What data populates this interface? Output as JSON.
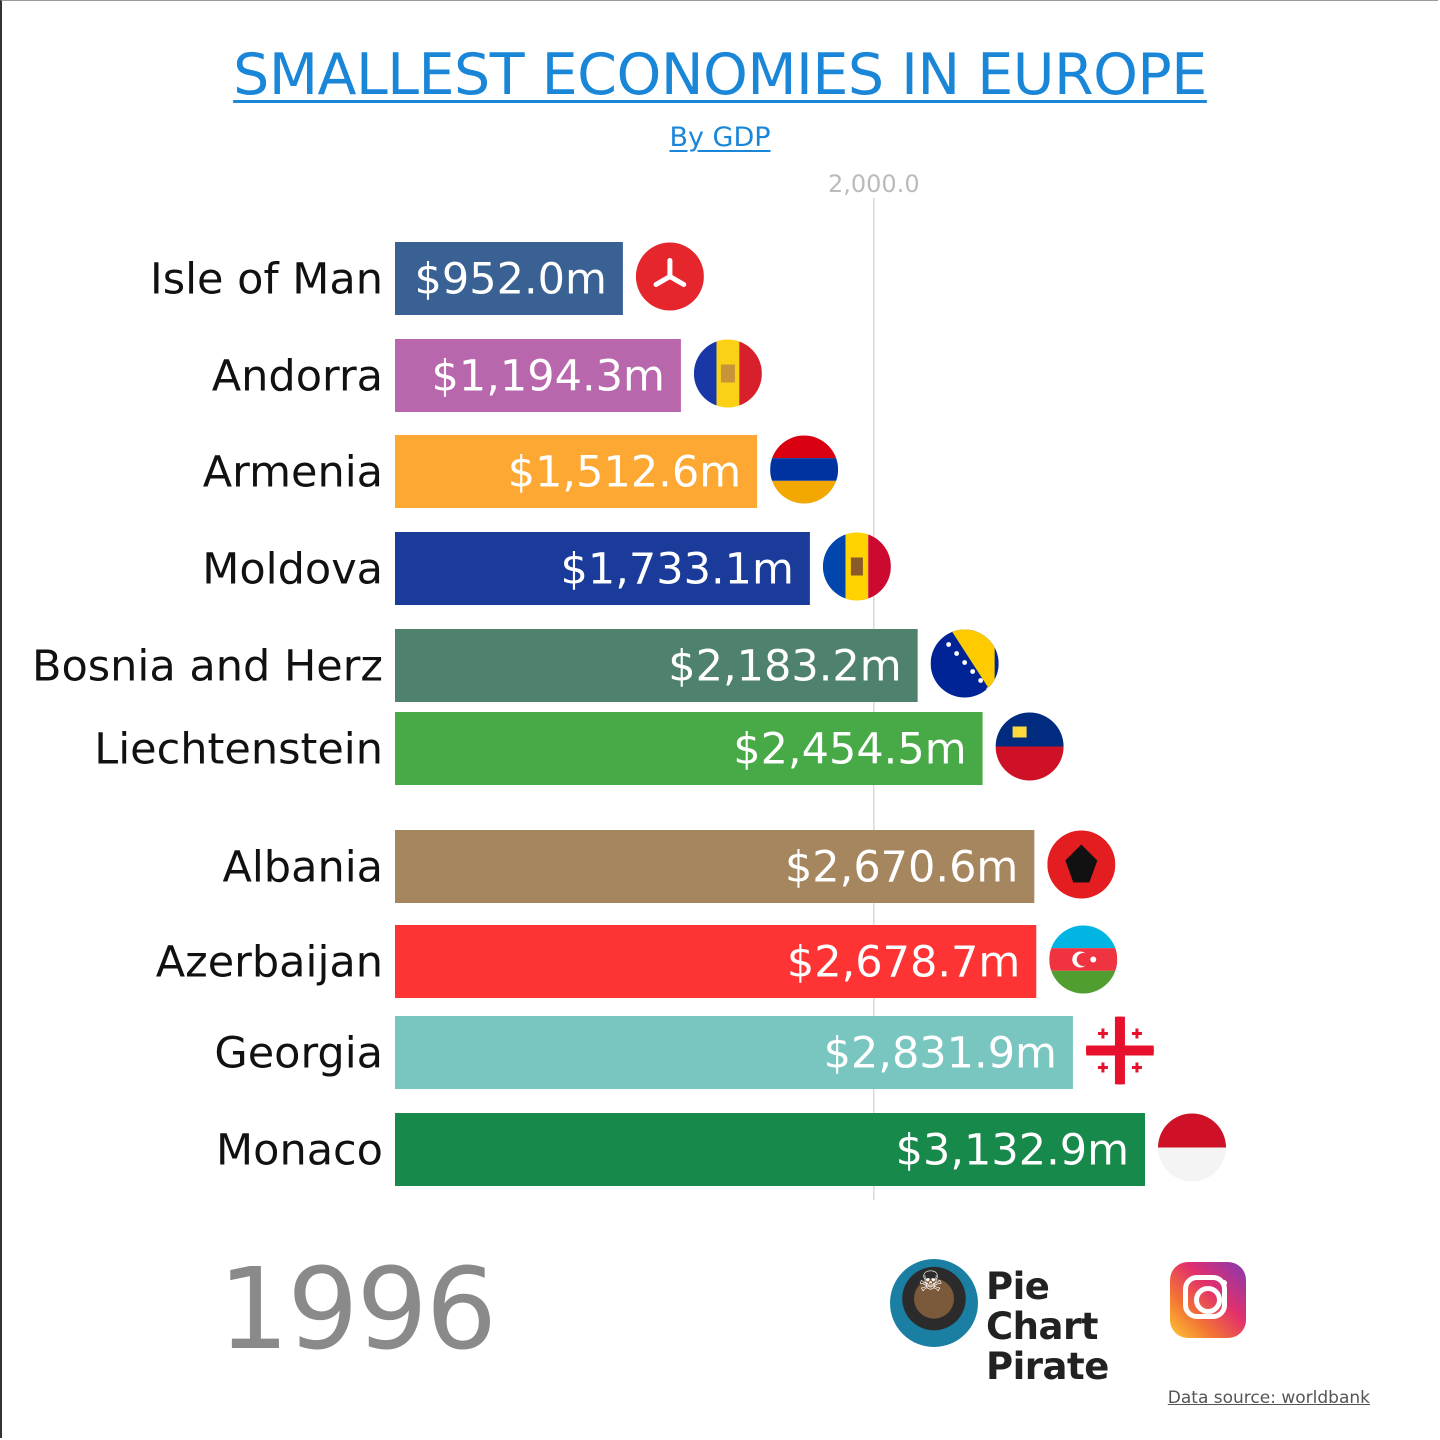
{
  "header": {
    "title": "SMALLEST ECONOMIES IN EUROPE",
    "subtitle": "By GDP"
  },
  "chart_data": {
    "type": "bar",
    "orientation": "horizontal",
    "title": "SMALLEST ECONOMIES IN EUROPE",
    "subtitle": "By GDP",
    "unit": "$m",
    "x_ticks": [
      "2,000.0"
    ],
    "xlim": [
      0,
      4000
    ],
    "grid": true,
    "categories": [
      "Isle of Man",
      "Andorra",
      "Armenia",
      "Moldova",
      "Bosnia and Herz",
      "Liechtenstein",
      "Albania",
      "Azerbaijan",
      "Georgia",
      "Monaco"
    ],
    "values": [
      952.0,
      1194.3,
      1512.6,
      1733.1,
      2183.2,
      2454.5,
      2670.6,
      2678.7,
      2831.9,
      3132.9
    ],
    "value_labels": [
      "$952.0m",
      "$1,194.3m",
      "$1,512.6m",
      "$1,733.1m",
      "$2,183.2m",
      "$2,454.5m",
      "$2,670.6m",
      "$2,678.7m",
      "$2,831.9m",
      "$3,132.9m"
    ],
    "colors": [
      "#3a6193",
      "#b967ad",
      "#fda833",
      "#1b3b9b",
      "#4e826c",
      "#48aa47",
      "#a6865e",
      "#fe3434",
      "#79c6c1",
      "#17894b"
    ],
    "flags": [
      "isle-of-man-flag",
      "andorra-flag",
      "armenia-flag",
      "moldova-flag",
      "bosnia-flag",
      "liechtenstein-flag",
      "albania-flag",
      "azerbaijan-flag",
      "georgia-flag",
      "monaco-flag"
    ]
  },
  "year": "1996",
  "brand": {
    "line1": "Pie Chart",
    "line2": "Pirate"
  },
  "footer": {
    "source": "Data source: worldbank"
  }
}
